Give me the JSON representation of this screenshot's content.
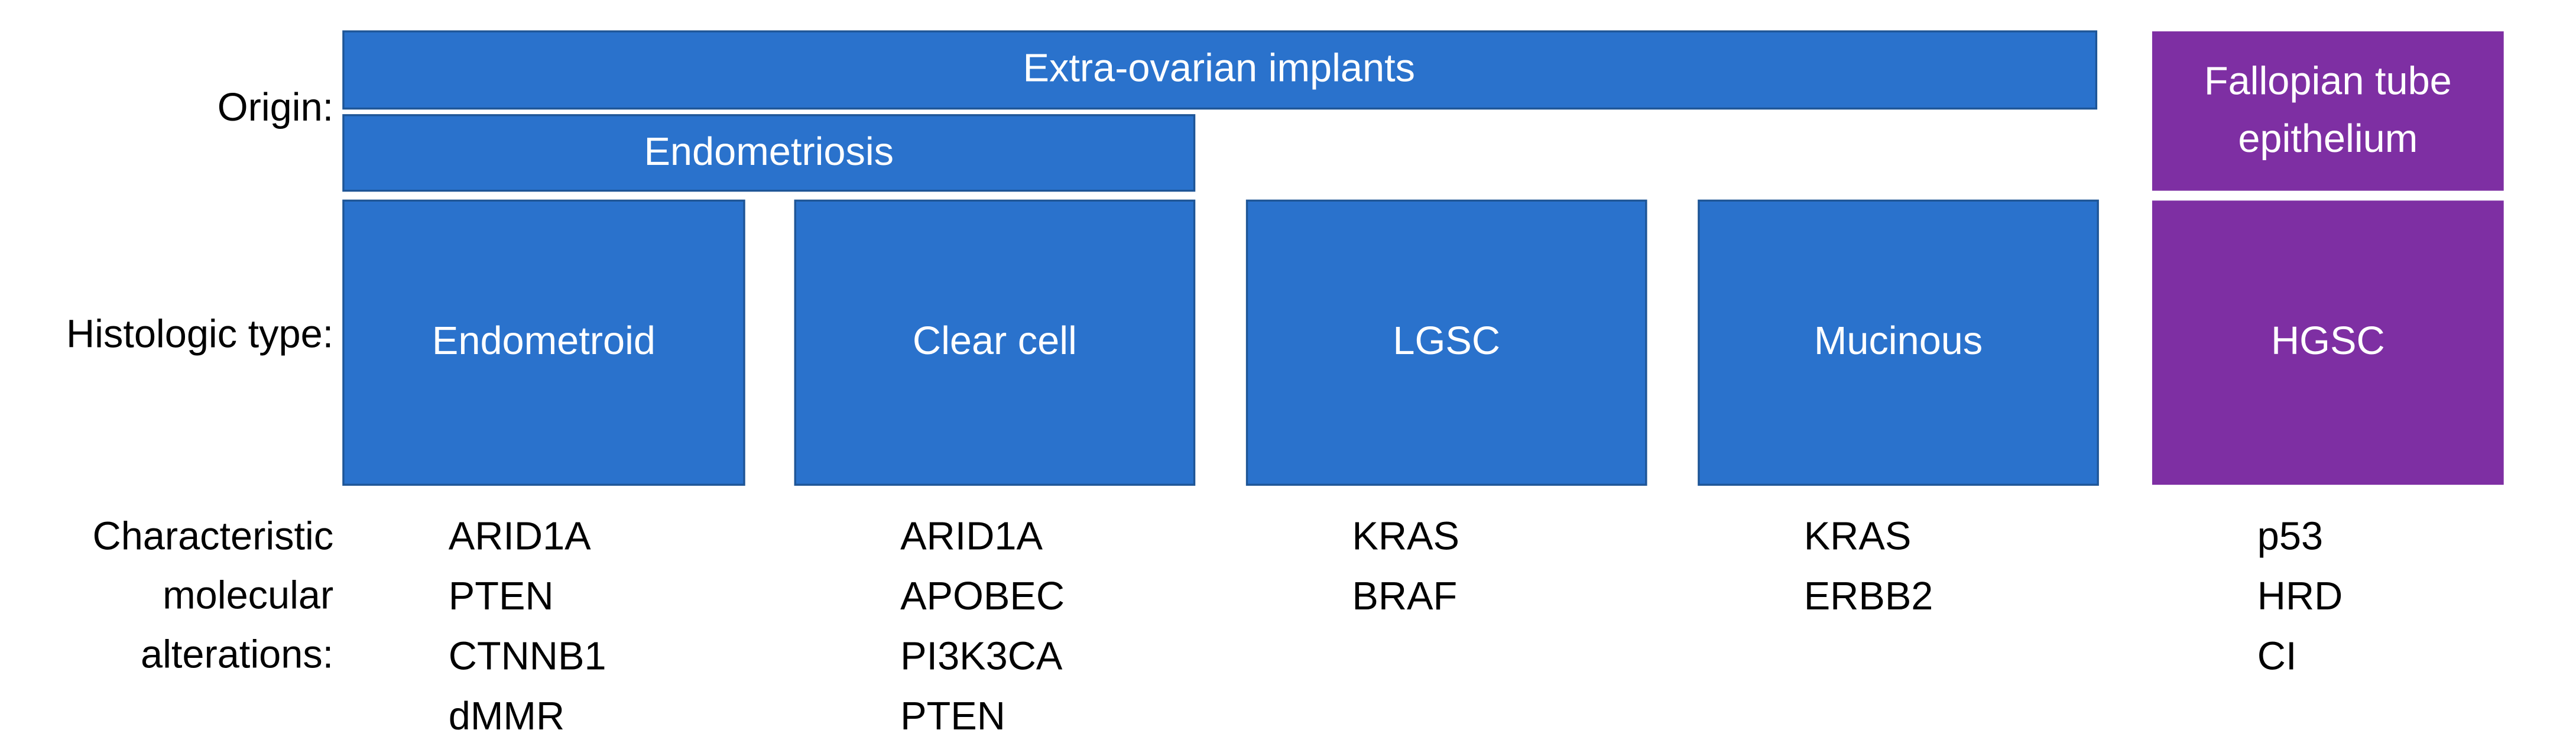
{
  "row_labels": {
    "origin": "Origin:",
    "histologic_type": "Histologic type:",
    "alterations": [
      "Characteristic",
      "molecular",
      "alterations:"
    ]
  },
  "origins": [
    {
      "label": "Extra-ovarian implants"
    },
    {
      "label": "Endometriosis"
    },
    {
      "label": [
        "Fallopian tube",
        "epithelium"
      ]
    }
  ],
  "types": [
    {
      "label": "Endometroid",
      "alterations": [
        "ARID1A",
        "PTEN",
        "CTNNB1",
        "dMMR"
      ]
    },
    {
      "label": "Clear cell",
      "alterations": [
        "ARID1A",
        "APOBEC",
        "PI3K3CA",
        "PTEN"
      ]
    },
    {
      "label": "LGSC",
      "alterations": [
        "KRAS",
        "BRAF"
      ]
    },
    {
      "label": "Mucinous",
      "alterations": [
        "KRAS",
        "ERBB2"
      ]
    },
    {
      "label": "HGSC",
      "alterations": [
        "p53",
        "HRD",
        "CI"
      ]
    }
  ]
}
